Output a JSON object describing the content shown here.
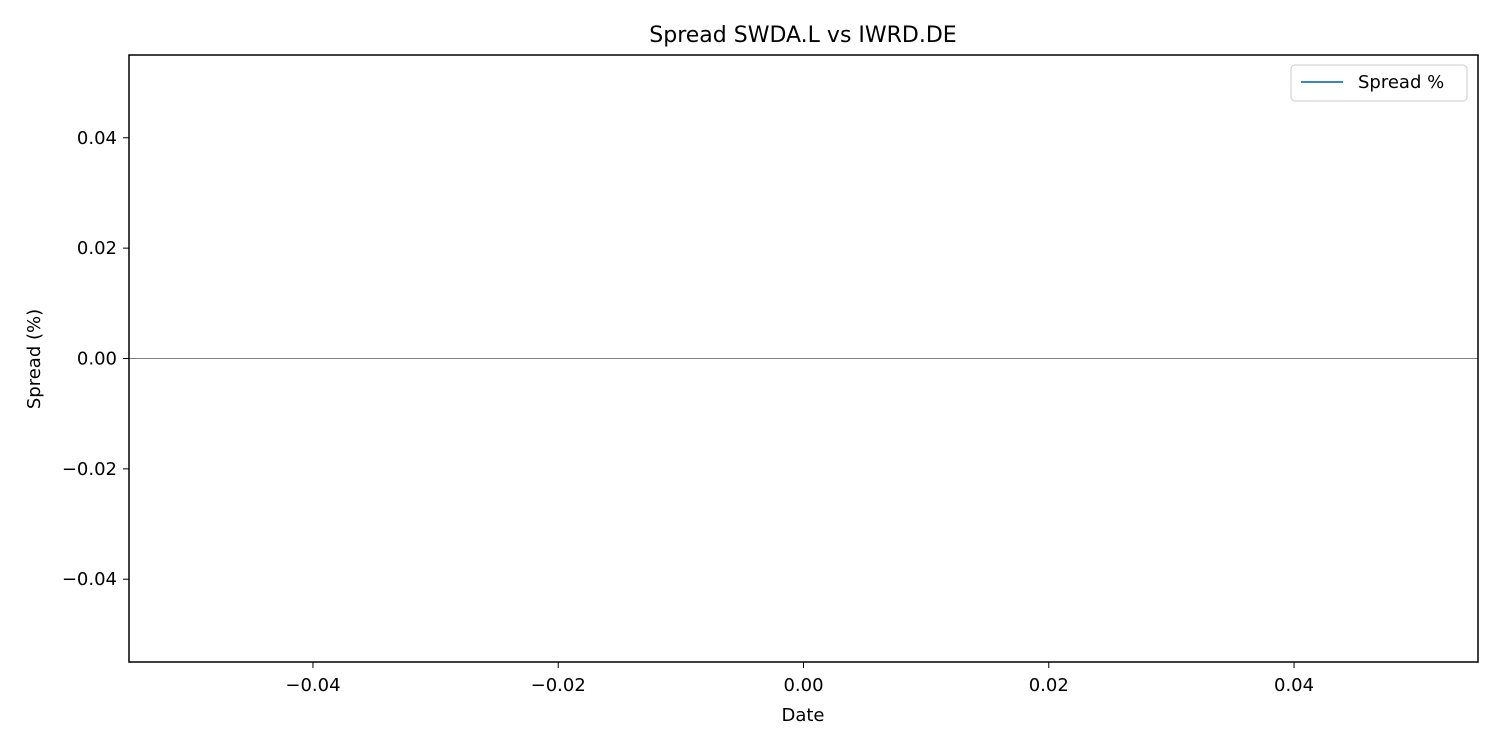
{
  "chart_data": {
    "type": "line",
    "title": "Spread SWDA.L vs IWRD.DE",
    "xlabel": "Date",
    "ylabel": "Spread (%)",
    "xlim": [
      -0.055,
      0.055
    ],
    "ylim": [
      -0.055,
      0.055
    ],
    "x_ticks": [
      -0.04,
      -0.02,
      0.0,
      0.02,
      0.04
    ],
    "x_tick_labels": [
      "−0.04",
      "−0.02",
      "0.00",
      "0.02",
      "0.04"
    ],
    "y_ticks": [
      -0.04,
      -0.02,
      0.0,
      0.02,
      0.04
    ],
    "y_tick_labels": [
      "−0.04",
      "−0.02",
      "0.00",
      "0.02",
      "0.04"
    ],
    "reference_line": {
      "y": 0,
      "color": "#808080"
    },
    "series": [
      {
        "name": "Spread %",
        "color": "#1f77b4",
        "x": [],
        "y": []
      }
    ],
    "legend": {
      "placement": "top-right"
    },
    "grid": false
  }
}
